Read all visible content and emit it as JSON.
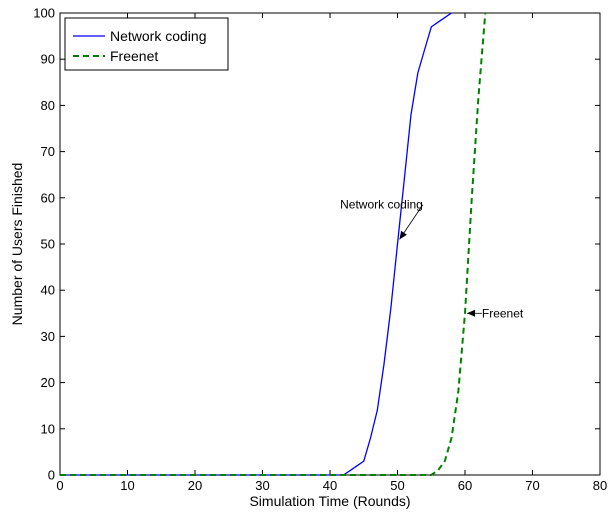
{
  "chart_data": {
    "type": "line",
    "title": "",
    "xlabel": "Simulation Time (Rounds)",
    "ylabel": "Number of Users Finished",
    "xlim": [
      0,
      80
    ],
    "ylim": [
      0,
      100
    ],
    "xticks": [
      0,
      10,
      20,
      30,
      40,
      50,
      60,
      70,
      80
    ],
    "yticks": [
      0,
      10,
      20,
      30,
      40,
      50,
      60,
      70,
      80,
      90,
      100
    ],
    "grid": false,
    "legend": "top-left",
    "series": [
      {
        "name": "Network coding",
        "color": "#0000ff",
        "style": "solid",
        "x": [
          0,
          42,
          43,
          44,
          45,
          46,
          47,
          48,
          49,
          50,
          51,
          52,
          53,
          54,
          55,
          56,
          57,
          58
        ],
        "y": [
          0,
          0,
          1,
          2,
          3,
          8,
          14,
          24,
          36,
          50,
          64,
          78,
          87,
          92,
          97,
          98,
          99,
          100
        ]
      },
      {
        "name": "Freenet",
        "color": "#008000",
        "style": "dashed",
        "x": [
          0,
          55,
          56,
          57,
          58,
          59,
          60,
          61,
          62,
          63
        ],
        "y": [
          0,
          0,
          1,
          3,
          8,
          18,
          35,
          60,
          82,
          100
        ]
      }
    ],
    "annotations": [
      {
        "text": "Network coding",
        "text_x": 41.5,
        "text_y": 58.5,
        "arrow_x": 50.3,
        "arrow_y": 51
      },
      {
        "text": "Freenet",
        "text_x": 62.5,
        "text_y": 35,
        "arrow_x": 60.3,
        "arrow_y": 35
      }
    ]
  }
}
